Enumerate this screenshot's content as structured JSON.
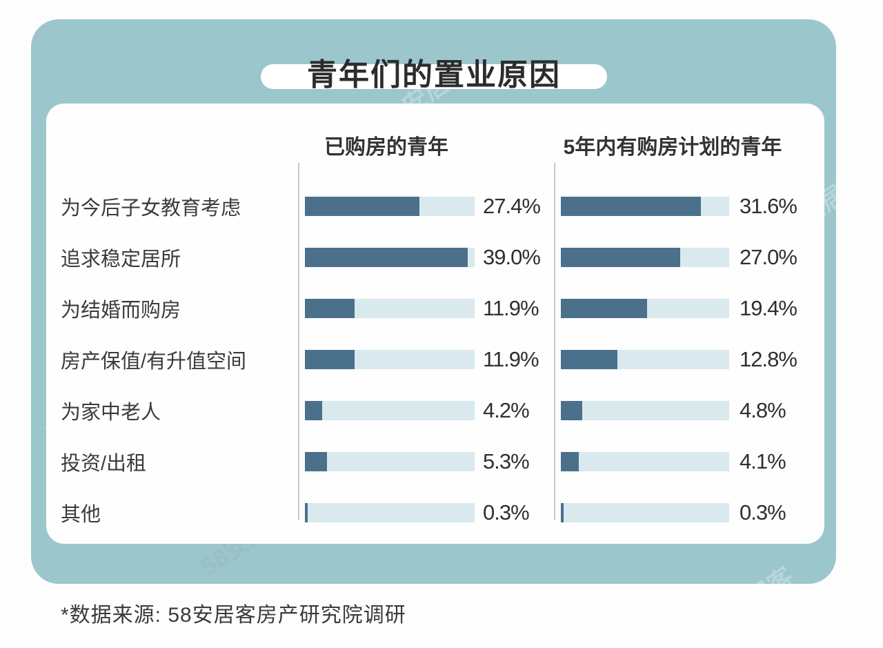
{
  "title": "青年们的置业原因",
  "source_note": "*数据来源: 58安居客房产研究院调研",
  "watermark": "58安居客",
  "colors": {
    "card_teal": "#9bc6cc",
    "bar_fill": "#4a708c",
    "bar_track": "#d9e9ee",
    "divider": "#c4c9cb",
    "title_text": "#2c2c2c",
    "label_text": "#3b3b3b"
  },
  "chart_data": {
    "type": "bar",
    "orientation": "horizontal",
    "title": "青年们的置业原因",
    "categories": [
      "为今后子女教育考虑",
      "追求稳定居所",
      "为结婚而购房",
      "房产保值/有升值空间",
      "为家中老人",
      "投资/出租",
      "其他"
    ],
    "series": [
      {
        "name": "已购房的青年",
        "values": [
          27.4,
          39.0,
          11.9,
          11.9,
          4.2,
          5.3,
          0.3
        ],
        "axis_max": 40.6
      },
      {
        "name": "5年内有购房计划的青年",
        "values": [
          31.6,
          27.0,
          19.4,
          12.8,
          4.8,
          4.1,
          0.3
        ],
        "axis_max": 38.0
      }
    ],
    "value_suffix": "%",
    "grid": false,
    "legend_position": "column-headers"
  }
}
